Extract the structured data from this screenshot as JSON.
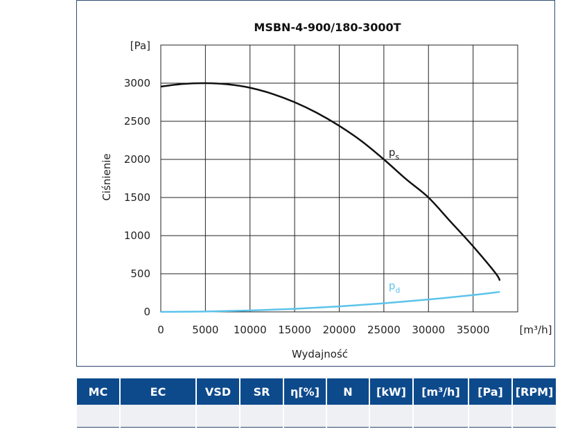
{
  "chart_data": {
    "type": "line",
    "title": "MSBN-4-900/180-3000T",
    "xlabel": "Wydajność",
    "ylabel": "Ciśnienie",
    "x_unit": "[m³/h]",
    "y_unit": "[Pa]",
    "xlim": [
      0,
      40000
    ],
    "ylim": [
      0,
      3500
    ],
    "x_ticks": [
      "0",
      "5000",
      "10000",
      "15000",
      "20000",
      "25000",
      "30000",
      "35000"
    ],
    "y_ticks": [
      "0",
      "500",
      "1000",
      "1500",
      "2000",
      "2500",
      "3000"
    ],
    "grid": true,
    "series": [
      {
        "name": "ps",
        "label_base": "p",
        "label_sub": "s",
        "color": "#111111",
        "x": [
          0,
          2500,
          5000,
          7500,
          10000,
          12500,
          15000,
          17500,
          20000,
          22500,
          25000,
          27500,
          30000,
          32500,
          35000,
          37500,
          38000
        ],
        "y": [
          2955,
          2990,
          3000,
          2985,
          2940,
          2860,
          2750,
          2610,
          2440,
          2240,
          2000,
          1740,
          1500,
          1180,
          860,
          510,
          410
        ]
      },
      {
        "name": "pd",
        "label_base": "p",
        "label_sub": "d",
        "color": "#5bc3ea",
        "x": [
          0,
          5000,
          10000,
          15000,
          20000,
          25000,
          30000,
          35000,
          38000
        ],
        "y": [
          0,
          4,
          18,
          40,
          72,
          112,
          162,
          220,
          262
        ]
      }
    ]
  },
  "table": {
    "headers": [
      "MC",
      "EC",
      "VSD",
      "SR",
      "η[%]",
      "N",
      "[kW]",
      "[m³/h]",
      "[Pa]",
      "[RPM]"
    ],
    "rows": [
      [
        "",
        "",
        "",
        "",
        "",
        "",
        "",
        "",
        "",
        ""
      ]
    ]
  }
}
